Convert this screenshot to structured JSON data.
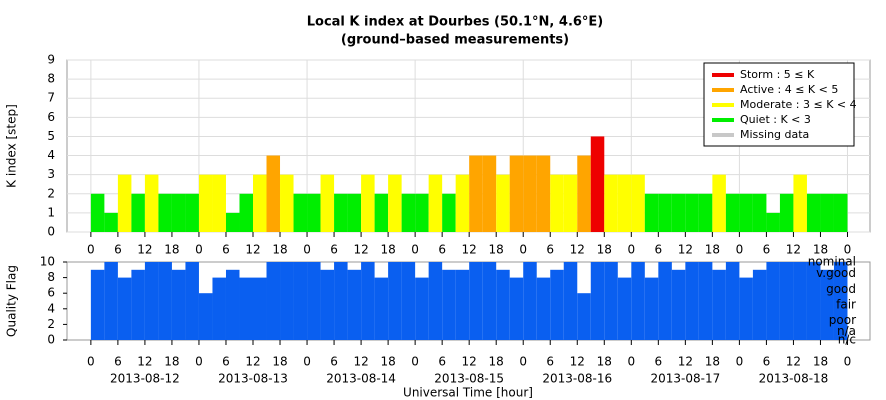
{
  "chart_data": [
    {
      "type": "bar",
      "title": "Local K index at Dourbes (50.1°N, 4.6°E)",
      "subtitle": "(ground–based measurements)",
      "ylabel": "K index [step]",
      "x": [
        0,
        3,
        6,
        9,
        12,
        15,
        18,
        21,
        24,
        27,
        30,
        33,
        36,
        39,
        42,
        45,
        48,
        51,
        54,
        57,
        60,
        63,
        66,
        69,
        72,
        75,
        78,
        81,
        84,
        87,
        90,
        93,
        96,
        99,
        102,
        105,
        108,
        111,
        114,
        117,
        120,
        123,
        126,
        129,
        132,
        135,
        138,
        141,
        144,
        147,
        150,
        153,
        156,
        159,
        162,
        165
      ],
      "values": [
        2,
        1,
        3,
        2,
        3,
        2,
        2,
        2,
        3,
        3,
        1,
        2,
        3,
        4,
        3,
        2,
        2,
        3,
        2,
        2,
        3,
        2,
        3,
        2,
        2,
        3,
        2,
        3,
        4,
        4,
        3,
        4,
        4,
        4,
        3,
        3,
        4,
        5,
        3,
        3,
        3,
        2,
        2,
        2,
        2,
        2,
        3,
        2,
        2,
        2,
        1,
        2,
        3,
        2,
        2,
        2
      ],
      "xlim": [
        -5.3,
        173
      ],
      "ylim": [
        0,
        9
      ],
      "yticks": [
        0,
        1,
        2,
        3,
        4,
        5,
        6,
        7,
        8,
        9
      ],
      "grid": true,
      "xticks": [
        0,
        6,
        12,
        18,
        {
          "value": 24,
          "label": "0"
        },
        {
          "value": 30,
          "label": "6"
        },
        {
          "value": 36,
          "label": "12"
        },
        {
          "value": 42,
          "label": "18"
        },
        {
          "value": 48,
          "label": "0"
        },
        {
          "value": 54,
          "label": "6"
        },
        {
          "value": 60,
          "label": "12"
        },
        {
          "value": 66,
          "label": "18"
        },
        {
          "value": 72,
          "label": "0"
        },
        {
          "value": 78,
          "label": "6"
        },
        {
          "value": 84,
          "label": "12"
        },
        {
          "value": 90,
          "label": "18"
        },
        {
          "value": 96,
          "label": "0"
        },
        {
          "value": 102,
          "label": "6"
        },
        {
          "value": 108,
          "label": "12"
        },
        {
          "value": 114,
          "label": "18"
        },
        {
          "value": 120,
          "label": "0"
        },
        {
          "value": 126,
          "label": "6"
        },
        {
          "value": 132,
          "label": "12"
        },
        {
          "value": 138,
          "label": "18"
        },
        {
          "value": 144,
          "label": "0"
        },
        {
          "value": 150,
          "label": "6"
        },
        {
          "value": 156,
          "label": "12"
        },
        {
          "value": 162,
          "label": "18"
        },
        {
          "value": 168,
          "label": "0"
        }
      ],
      "legend_position": "upper right",
      "legend": [
        {
          "name": "Storm : 5 ≤ K",
          "color": "#ee0000",
          "min": 5
        },
        {
          "name": "Active : 4 ≤ K < 5",
          "color": "#ffa500",
          "min": 4
        },
        {
          "name": "Moderate : 3 ≤ K < 4",
          "color": "#ffff00",
          "min": 3
        },
        {
          "name": "Quiet : K < 3",
          "color": "#00ee00",
          "min": 0
        },
        {
          "name": "Missing data",
          "color": "#c8c8c8"
        }
      ]
    },
    {
      "type": "bar",
      "ylabel": "Quality Flag",
      "xlabel": "Universal Time [hour]",
      "color": "#0a5ff0",
      "x": [
        0,
        3,
        6,
        9,
        12,
        15,
        18,
        21,
        24,
        27,
        30,
        33,
        36,
        39,
        42,
        45,
        48,
        51,
        54,
        57,
        60,
        63,
        66,
        69,
        72,
        75,
        78,
        81,
        84,
        87,
        90,
        93,
        96,
        99,
        102,
        105,
        108,
        111,
        114,
        117,
        120,
        123,
        126,
        129,
        132,
        135,
        138,
        141,
        144,
        147,
        150,
        153,
        156,
        159,
        162,
        165
      ],
      "values": [
        9,
        10,
        8,
        9,
        10,
        10,
        9,
        10,
        6,
        8,
        9,
        8,
        8,
        10,
        10,
        10,
        10,
        9,
        10,
        9,
        10,
        8,
        10,
        10,
        8,
        10,
        9,
        9,
        10,
        10,
        9,
        8,
        10,
        8,
        9,
        10,
        6,
        10,
        10,
        8,
        10,
        8,
        10,
        9,
        10,
        10,
        9,
        10,
        8,
        9,
        10,
        10,
        10,
        10,
        9,
        10
      ],
      "xlim": [
        -5.3,
        173
      ],
      "ylim": [
        0,
        10
      ],
      "yticks": [
        0,
        2,
        4,
        6,
        8,
        10
      ],
      "xticks": [
        0,
        6,
        12,
        18,
        {
          "value": 24,
          "label": "0"
        },
        {
          "value": 30,
          "label": "6"
        },
        {
          "value": 36,
          "label": "12"
        },
        {
          "value": 42,
          "label": "18"
        },
        {
          "value": 48,
          "label": "0"
        },
        {
          "value": 54,
          "label": "6"
        },
        {
          "value": 60,
          "label": "12"
        },
        {
          "value": 66,
          "label": "18"
        },
        {
          "value": 72,
          "label": "0"
        },
        {
          "value": 78,
          "label": "6"
        },
        {
          "value": 84,
          "label": "12"
        },
        {
          "value": 90,
          "label": "18"
        },
        {
          "value": 96,
          "label": "0"
        },
        {
          "value": 102,
          "label": "6"
        },
        {
          "value": 108,
          "label": "12"
        },
        {
          "value": 114,
          "label": "18"
        },
        {
          "value": 120,
          "label": "0"
        },
        {
          "value": 126,
          "label": "6"
        },
        {
          "value": 132,
          "label": "12"
        },
        {
          "value": 138,
          "label": "18"
        },
        {
          "value": 144,
          "label": "0"
        },
        {
          "value": 150,
          "label": "6"
        },
        {
          "value": 156,
          "label": "12"
        },
        {
          "value": 162,
          "label": "18"
        },
        {
          "value": 168,
          "label": "0"
        }
      ],
      "date_labels": [
        {
          "value": 12,
          "label": "2013-08-12"
        },
        {
          "value": 36,
          "label": "2013-08-13"
        },
        {
          "value": 60,
          "label": "2013-08-14"
        },
        {
          "value": 84,
          "label": "2013-08-15"
        },
        {
          "value": 108,
          "label": "2013-08-16"
        },
        {
          "value": 132,
          "label": "2013-08-17"
        },
        {
          "value": 156,
          "label": "2013-08-18"
        }
      ],
      "right_labels": [
        {
          "value": 10,
          "label": "nominal"
        },
        {
          "value": 8.5,
          "label": "v.good"
        },
        {
          "value": 6.5,
          "label": "good"
        },
        {
          "value": 4.5,
          "label": "fair"
        },
        {
          "value": 2.5,
          "label": "poor"
        },
        {
          "value": 1.1,
          "label": "n/a"
        },
        {
          "value": 0,
          "label": "n/c"
        }
      ]
    }
  ]
}
